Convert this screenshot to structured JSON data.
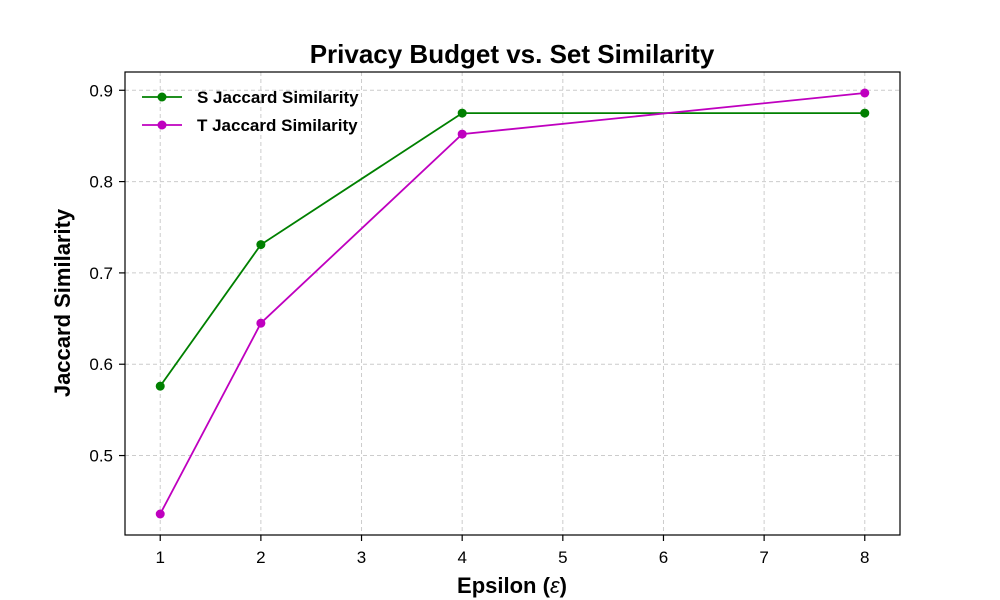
{
  "chart_data": {
    "type": "line",
    "title": "Privacy Budget vs. Set Similarity",
    "xlabel": "Epsilon (",
    "xlabel_symbol": "ε",
    "xlabel_suffix": ")",
    "ylabel": "Jaccard Similarity",
    "xlim": [
      0.65,
      8.35
    ],
    "ylim": [
      0.413,
      0.92
    ],
    "xticks": [
      1,
      2,
      3,
      4,
      5,
      6,
      7,
      8
    ],
    "yticks": [
      0.5,
      0.6,
      0.7,
      0.8,
      0.9
    ],
    "ytick_labels": [
      "0.5",
      "0.6",
      "0.7",
      "0.8",
      "0.9"
    ],
    "grid": true,
    "legend_position": "top-left",
    "x": [
      1,
      2,
      4,
      8
    ],
    "series": [
      {
        "name": "S Jaccard Similarity",
        "color": "#008000",
        "values": [
          0.576,
          0.731,
          0.875,
          0.875
        ]
      },
      {
        "name": "T Jaccard Similarity",
        "color": "#bf00bf",
        "values": [
          0.436,
          0.645,
          0.852,
          0.897
        ]
      }
    ]
  }
}
